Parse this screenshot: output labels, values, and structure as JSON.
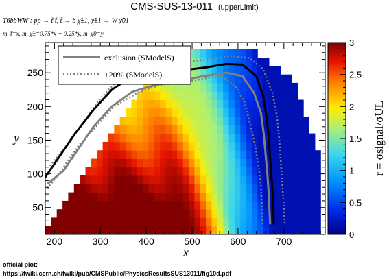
{
  "chart_data": {
    "type": "heatmap",
    "title": "CMS-SUS-13-011",
    "title_suffix": "(upperLimit)",
    "process_line": "T6bbWW : pp → t̃ t̃, t̃ → b χ̃±1, χ̃±1 → W χ̃01",
    "mass_line": "m_t̃=x, m_χ̃±=0.75*x + 0.25*y, m_χ̃0=y",
    "xlabel": "x",
    "ylabel": "y",
    "zlabel": "r = σsignal/σUL",
    "xlim": [
      180,
      790
    ],
    "ylim": [
      10,
      295
    ],
    "zlim": [
      0,
      3
    ],
    "x_ticks": [
      200,
      300,
      400,
      500,
      600,
      700
    ],
    "y_ticks": [
      50,
      100,
      150,
      200,
      250
    ],
    "z_ticks": [
      0,
      0.5,
      1,
      1.5,
      2,
      2.5,
      3
    ],
    "legend_position": "top-left",
    "series": [
      {
        "name": "exclusion (SModelS)",
        "style": "solid",
        "color": "#000000",
        "points": [
          [
            180,
            95
          ],
          [
            210,
            125
          ],
          [
            245,
            160
          ],
          [
            285,
            195
          ],
          [
            325,
            225
          ],
          [
            370,
            245
          ],
          [
            420,
            252
          ],
          [
            470,
            253
          ],
          [
            530,
            258
          ],
          [
            575,
            263
          ],
          [
            610,
            262
          ],
          [
            640,
            245
          ],
          [
            655,
            215
          ],
          [
            662,
            185
          ],
          [
            667,
            155
          ],
          [
            670,
            125
          ],
          [
            673,
            95
          ],
          [
            676,
            65
          ],
          [
            678,
            25
          ]
        ]
      },
      {
        "name": "±20% (SModelS)",
        "style": "dotted",
        "color": "#808080",
        "bands": [
          [
            [
              190,
              112
            ],
            [
              225,
              140
            ],
            [
              262,
              175
            ],
            [
              300,
              212
            ],
            [
              340,
              240
            ],
            [
              385,
              257
            ],
            [
              430,
              264
            ],
            [
              480,
              266
            ],
            [
              535,
              270
            ],
            [
              585,
              275
            ],
            [
              625,
              272
            ],
            [
              655,
              255
            ],
            [
              675,
              220
            ],
            [
              685,
              185
            ],
            [
              690,
              150
            ],
            [
              693,
              120
            ],
            [
              696,
              90
            ],
            [
              699,
              60
            ],
            [
              702,
              25
            ]
          ],
          [
            [
              185,
              78
            ],
            [
              215,
              105
            ],
            [
              250,
              140
            ],
            [
              290,
              170
            ],
            [
              330,
              200
            ],
            [
              380,
              220
            ],
            [
              430,
              232
            ],
            [
              485,
              236
            ],
            [
              530,
              242
            ],
            [
              565,
              245
            ],
            [
              595,
              230
            ],
            [
              615,
              205
            ],
            [
              628,
              170
            ],
            [
              638,
              140
            ],
            [
              645,
              110
            ],
            [
              650,
              80
            ],
            [
              652,
              50
            ],
            [
              654,
              25
            ]
          ]
        ]
      }
    ],
    "reference_line": {
      "color": "#808080",
      "points": [
        [
          185,
          85
        ],
        [
          220,
          105
        ],
        [
          250,
          135
        ],
        [
          285,
          170
        ],
        [
          325,
          200
        ],
        [
          370,
          222
        ],
        [
          420,
          232
        ],
        [
          470,
          238
        ],
        [
          525,
          245
        ],
        [
          575,
          250
        ],
        [
          610,
          245
        ],
        [
          635,
          220
        ],
        [
          650,
          190
        ],
        [
          656,
          160
        ],
        [
          660,
          130
        ],
        [
          664,
          100
        ],
        [
          667,
          70
        ],
        [
          670,
          25
        ]
      ]
    }
  },
  "footer": {
    "line1": "official plot:",
    "line2": "https://twiki.cern.ch/twiki/pub/CMSPublic/PhysicsResultsSUS13011/fig10d.pdf"
  }
}
